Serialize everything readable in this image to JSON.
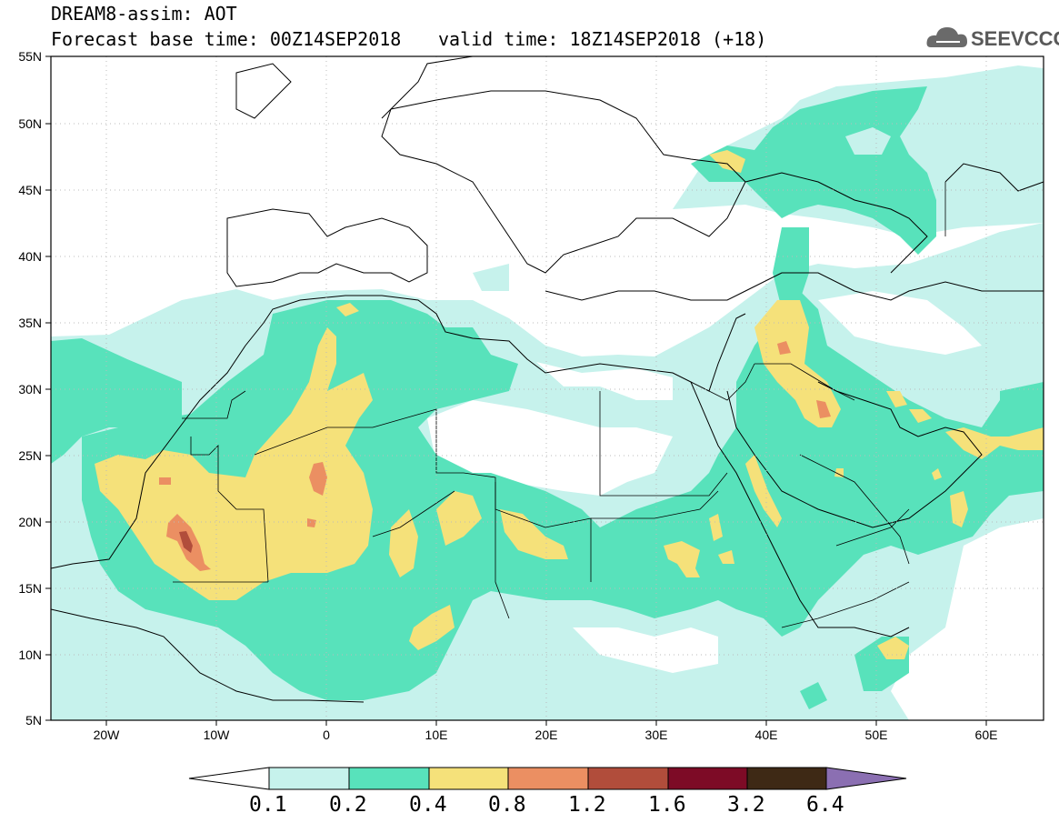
{
  "header": {
    "title": "DREAM8-assim: AOT",
    "base_time": "Forecast base time: 00Z14SEP2018",
    "valid_time": "valid time: 18Z14SEP2018 (+18)",
    "logo_text": "SEEVCCC"
  },
  "axes": {
    "lat_labels": [
      "55N",
      "50N",
      "45N",
      "40N",
      "35N",
      "30N",
      "25N",
      "20N",
      "15N",
      "10N",
      "5N"
    ],
    "lon_labels": [
      "20W",
      "10W",
      "0",
      "10E",
      "20E",
      "30E",
      "40E",
      "50E",
      "60E"
    ]
  },
  "colorbar": {
    "labels": [
      "0.1",
      "0.2",
      "0.4",
      "0.8",
      "1.2",
      "1.6",
      "3.2",
      "6.4"
    ],
    "colors": [
      "#ffffff",
      "#c6f2ec",
      "#58e2bb",
      "#f5e17a",
      "#eb8f62",
      "#b14d3b",
      "#7d0b26",
      "#3e2915",
      "#8b6fb2"
    ]
  },
  "map": {
    "region": "North Africa, Middle East, Europe",
    "lon_range": [
      -25,
      65
    ],
    "lat_range": [
      5,
      55
    ],
    "variable": "Aerosol Optical Thickness"
  }
}
